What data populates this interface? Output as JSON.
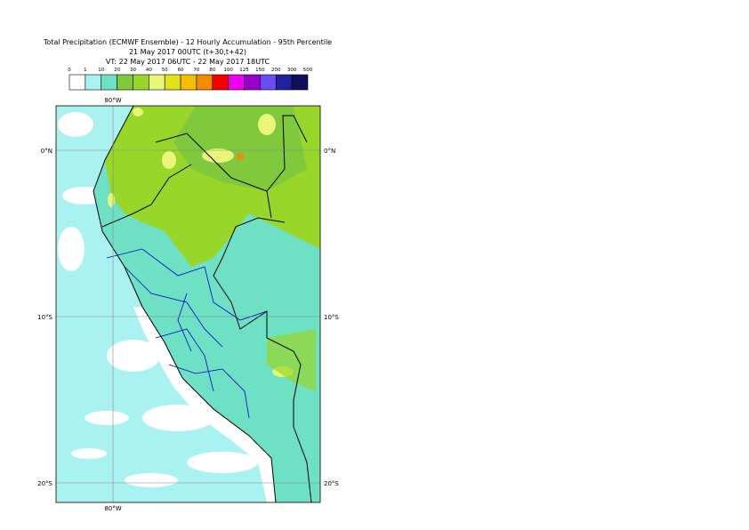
{
  "header": {
    "title": "Total Precipitation (ECMWF Ensemble) - 12 Hourly Accumulation - 95th Percentile",
    "base_time": "21 May 2017 00UTC (t+30,t+42)",
    "valid_time": "VT: 22 May 2017 06UTC - 22 May 2017 18UTC"
  },
  "legend": {
    "ticks": [
      "0",
      "1",
      "10",
      "20",
      "30",
      "40",
      "50",
      "60",
      "70",
      "80",
      "100",
      "125",
      "150",
      "200",
      "300",
      "500"
    ],
    "colors": [
      "#ffffff",
      "#aaf2f2",
      "#6ee0c4",
      "#80c83c",
      "#98d62a",
      "#e8f77a",
      "#e2e21c",
      "#f2c000",
      "#f48a00",
      "#f40000",
      "#ee00ee",
      "#9a00cc",
      "#6a4cf0",
      "#2222a0",
      "#10105a"
    ]
  },
  "map": {
    "lon_labels": [
      "80°W"
    ],
    "lat_labels": [
      "0°N",
      "10°S",
      "20°S"
    ]
  }
}
